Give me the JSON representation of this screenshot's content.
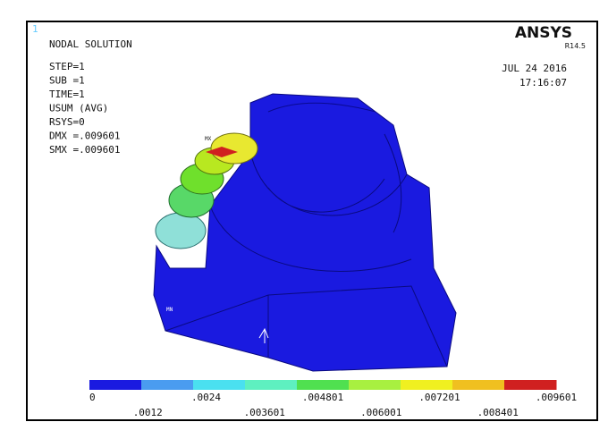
{
  "window": {
    "index": "1",
    "brand": "ANSYS",
    "version": "R14.5",
    "date": "JUL 24 2016",
    "time": "17:16:07"
  },
  "info": {
    "title": "NODAL SOLUTION",
    "lines": [
      "STEP=1",
      "SUB =1",
      "TIME=1",
      "USUM       (AVG)",
      "RSYS=0",
      "DMX =.009601",
      "SMX =.009601"
    ]
  },
  "markers": {
    "max": "MX",
    "min": "MN"
  },
  "legend": {
    "labels": [
      "0",
      ".0012",
      ".0024",
      ".003601",
      ".004801",
      ".006001",
      ".007201",
      ".008401",
      ".009601"
    ]
  }
}
